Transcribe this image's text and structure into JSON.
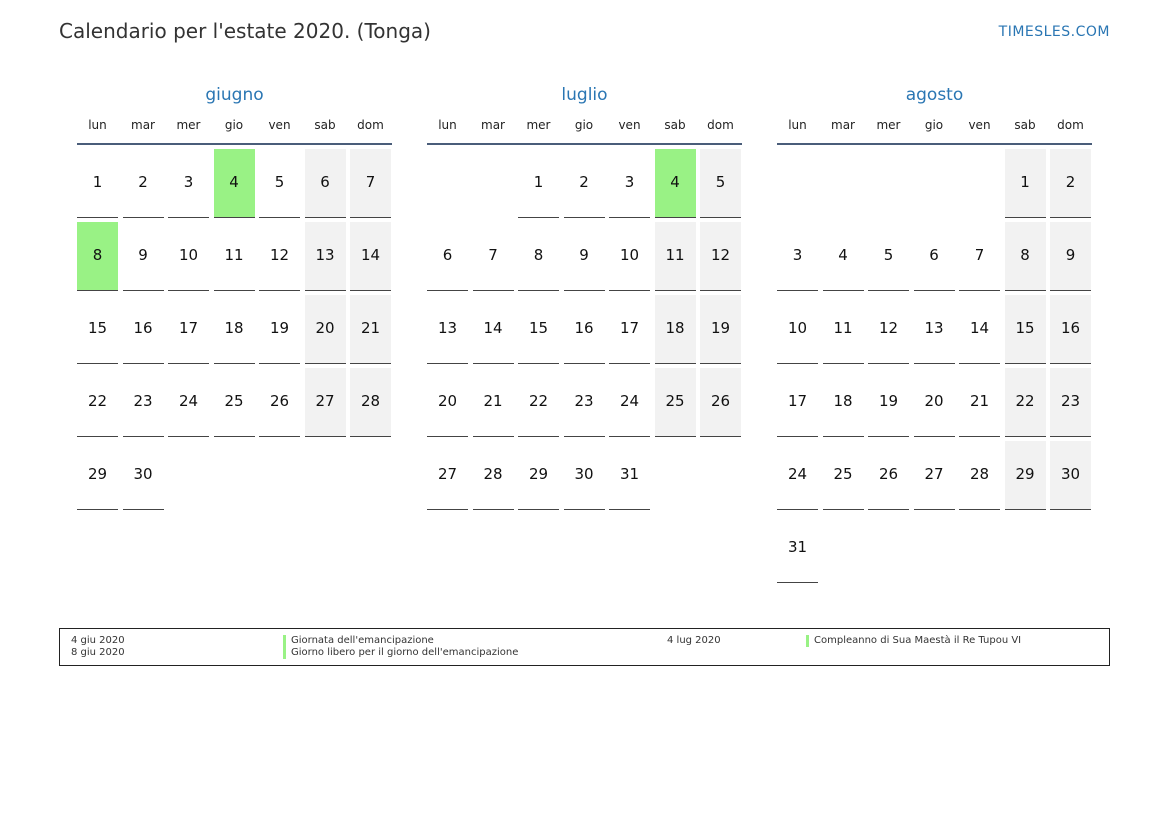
{
  "header": {
    "title": "Calendario per l'estate 2020. (Tonga)",
    "site": "TIMESLES.COM"
  },
  "weekdays": [
    "lun",
    "mar",
    "mer",
    "gio",
    "ven",
    "sab",
    "dom"
  ],
  "colors": {
    "accent": "#2a76b3",
    "holiday": "#99f285",
    "weekend": "#f2f2f2"
  },
  "months": [
    {
      "name": "giugno",
      "start_offset": 0,
      "days": 30,
      "holidays": [
        4,
        8
      ]
    },
    {
      "name": "luglio",
      "start_offset": 2,
      "days": 31,
      "holidays": [
        4
      ]
    },
    {
      "name": "agosto",
      "start_offset": 5,
      "days": 31,
      "holidays": []
    }
  ],
  "legend": [
    {
      "date": "4 giu 2020",
      "name": "Giornata dell'emancipazione"
    },
    {
      "date": "8 giu 2020",
      "name": "Giorno libero per il giorno dell'emancipazione"
    },
    {
      "date": "4 lug 2020",
      "name": "Compleanno di Sua Maestà il Re Tupou VI"
    }
  ]
}
